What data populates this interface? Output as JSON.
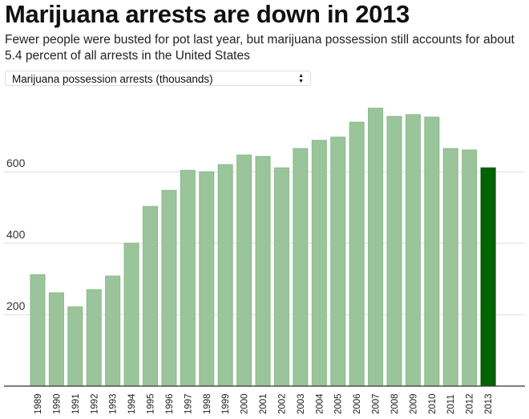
{
  "title": "Marijuana arrests are down in 2013",
  "subtitle": "Fewer people were busted for pot last year, but marijuana possession still accounts for about 5.4 percent of all arrests in the United States",
  "selector": {
    "selected": "Marijuana possession arrests (thousands)",
    "icon": "updown-arrows-icon"
  },
  "colors": {
    "bar": "#9ac59a",
    "highlight": "#006400"
  },
  "chart_data": {
    "type": "bar",
    "categories": [
      "1989",
      "1990",
      "1991",
      "1992",
      "1993",
      "1994",
      "1995",
      "1996",
      "1997",
      "1998",
      "1999",
      "2000",
      "2001",
      "2002",
      "2003",
      "2004",
      "2005",
      "2006",
      "2007",
      "2008",
      "2009",
      "2010",
      "2011",
      "2012",
      "2013"
    ],
    "values": [
      312,
      261,
      222,
      270,
      308,
      400,
      503,
      548,
      604,
      600,
      620,
      647,
      643,
      611,
      665,
      688,
      697,
      739,
      778,
      755,
      760,
      753,
      665,
      661,
      611
    ],
    "highlight": "2013",
    "yticks": [
      "200",
      "400",
      "600"
    ],
    "ylim": [
      0,
      800
    ],
    "grid": true,
    "xlabel": "",
    "ylabel": ""
  }
}
